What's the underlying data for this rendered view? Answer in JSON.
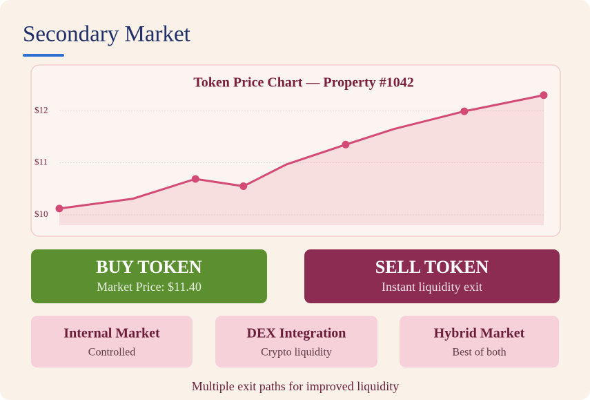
{
  "header": {
    "title": "Secondary Market"
  },
  "chart_data": {
    "type": "line",
    "title": "Token Price Chart — Property #1042",
    "x": [
      0,
      15.2,
      28.1,
      38.0,
      46.9,
      59.1,
      69.1,
      83.6,
      100
    ],
    "xlim": [
      0,
      100
    ],
    "series": [
      {
        "color": "#d44a76",
        "values": [
          10.12,
          10.31,
          10.69,
          10.55,
          10.97,
          11.35,
          11.65,
          11.99,
          12.3
        ],
        "markers": [
          true,
          false,
          true,
          true,
          false,
          true,
          false,
          true,
          true
        ]
      }
    ],
    "ylim": [
      9.8,
      12.35
    ],
    "yticks": [
      {
        "value": 10,
        "label": "$10"
      },
      {
        "value": 11,
        "label": "$11"
      },
      {
        "value": 12,
        "label": "$12"
      }
    ],
    "grid": true,
    "area": true
  },
  "buttons": [
    {
      "label": "BUY TOKEN",
      "sublabel": "Market Price: $11.40",
      "color": "#5b8f2f"
    },
    {
      "label": "SELL TOKEN",
      "sublabel": "Instant liquidity exit",
      "color": "#8d2c52"
    }
  ],
  "cards": [
    {
      "title": "Internal Market",
      "subtitle": "Controlled"
    },
    {
      "title": "DEX Integration",
      "subtitle": "Crypto liquidity"
    },
    {
      "title": "Hybrid Market",
      "subtitle": "Best of both"
    }
  ],
  "footer": {
    "text": "Multiple exit paths for improved liquidity"
  }
}
